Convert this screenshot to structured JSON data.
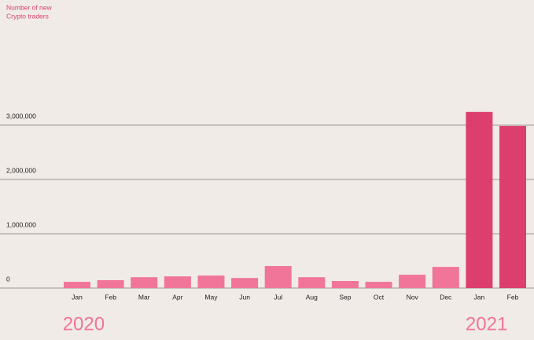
{
  "chart_data": {
    "type": "bar",
    "y_label": [
      "Number of new",
      "Crypto traders"
    ],
    "categories": [
      "Jan",
      "Feb",
      "Mar",
      "Apr",
      "May",
      "Jun",
      "Jul",
      "Aug",
      "Sep",
      "Oct",
      "Nov",
      "Dec",
      "Jan",
      "Feb"
    ],
    "series": [
      {
        "name": "2020",
        "color": "#f07599",
        "values": [
          115000,
          145000,
          200000,
          215000,
          230000,
          185000,
          405000,
          200000,
          130000,
          115000,
          245000,
          390000,
          null,
          null
        ]
      },
      {
        "name": "2021",
        "color": "#dc3f6e",
        "values": [
          null,
          null,
          null,
          null,
          null,
          null,
          null,
          null,
          null,
          null,
          null,
          null,
          3245000,
          2985000
        ]
      }
    ],
    "ylim": [
      0,
      4000000
    ],
    "yticks": [
      0,
      {
        "value": 1000000,
        "label": "1,000,000"
      },
      {
        "value": 2000000,
        "label": "2,000,000"
      },
      {
        "value": 3000000,
        "label": "3,000,000"
      }
    ],
    "grid": true
  }
}
